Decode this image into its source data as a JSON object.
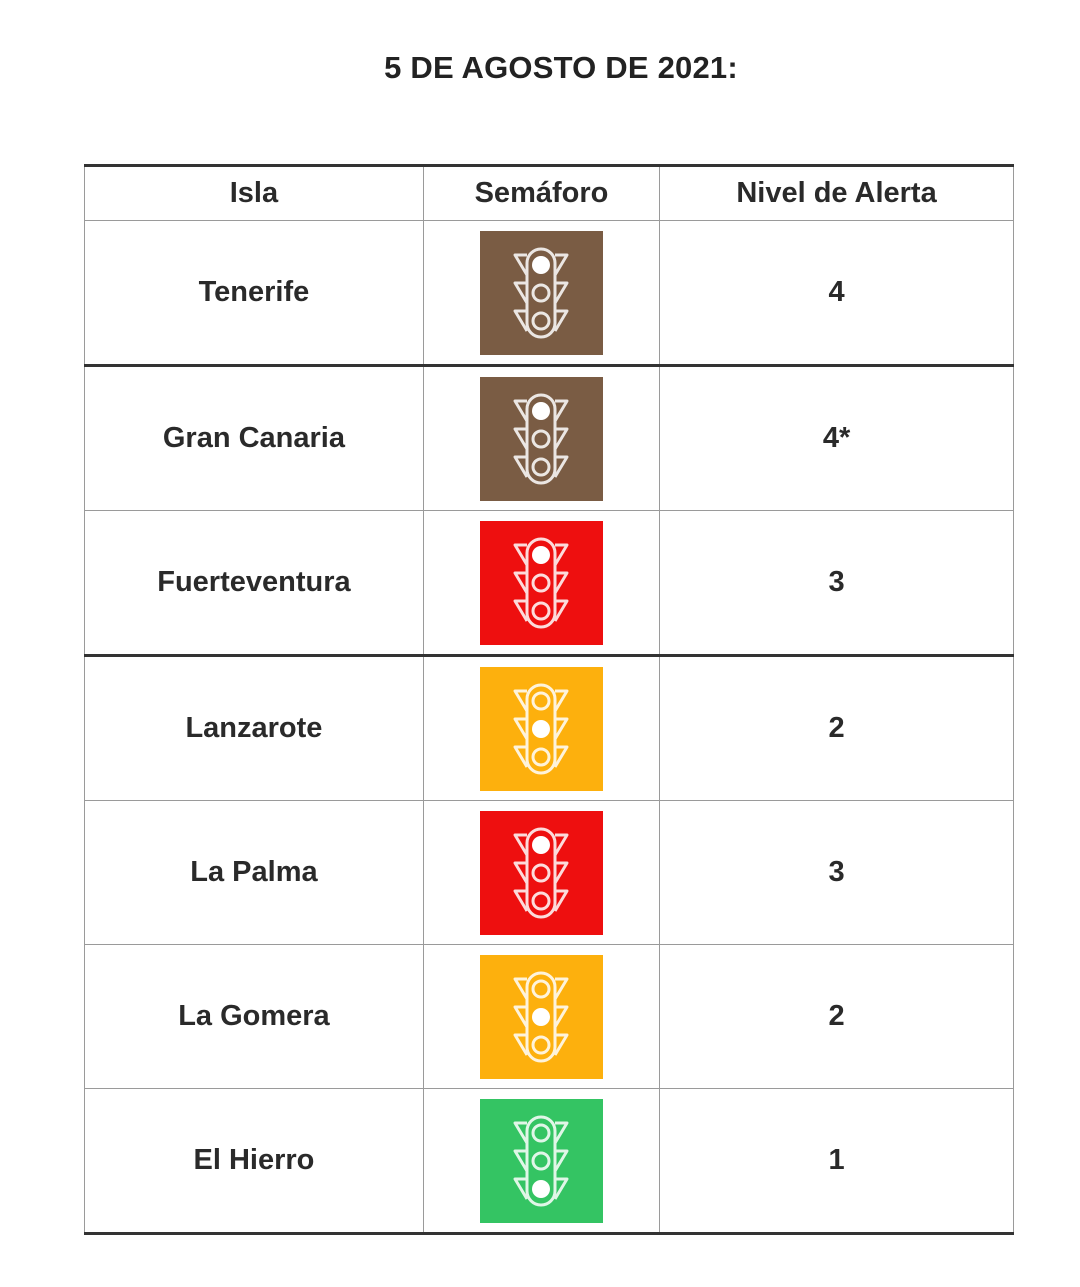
{
  "title": "5 DE AGOSTO DE 2021:",
  "table": {
    "headers": [
      "Isla",
      "Semáforo",
      "Nivel de Alerta"
    ],
    "rows": [
      {
        "isla": "Tenerife",
        "semaforo": {
          "icon": "traffic-light-icon",
          "color": "#7a5c44",
          "lit": "top"
        },
        "nivel": "4"
      },
      {
        "isla": "Gran Canaria",
        "semaforo": {
          "icon": "traffic-light-icon",
          "color": "#7a5c44",
          "lit": "top"
        },
        "nivel": "4*"
      },
      {
        "isla": "Fuerteventura",
        "semaforo": {
          "icon": "traffic-light-icon",
          "color": "#ee0f0f",
          "lit": "top"
        },
        "nivel": "3"
      },
      {
        "isla": "Lanzarote",
        "semaforo": {
          "icon": "traffic-light-icon",
          "color": "#fdb00d",
          "lit": "middle"
        },
        "nivel": "2"
      },
      {
        "isla": "La Palma",
        "semaforo": {
          "icon": "traffic-light-icon",
          "color": "#ee0f0f",
          "lit": "top"
        },
        "nivel": "3"
      },
      {
        "isla": "La Gomera",
        "semaforo": {
          "icon": "traffic-light-icon",
          "color": "#fdb00d",
          "lit": "middle"
        },
        "nivel": "2"
      },
      {
        "isla": "El Hierro",
        "semaforo": {
          "icon": "traffic-light-icon",
          "color": "#34c463",
          "lit": "bottom"
        },
        "nivel": "1"
      }
    ]
  }
}
